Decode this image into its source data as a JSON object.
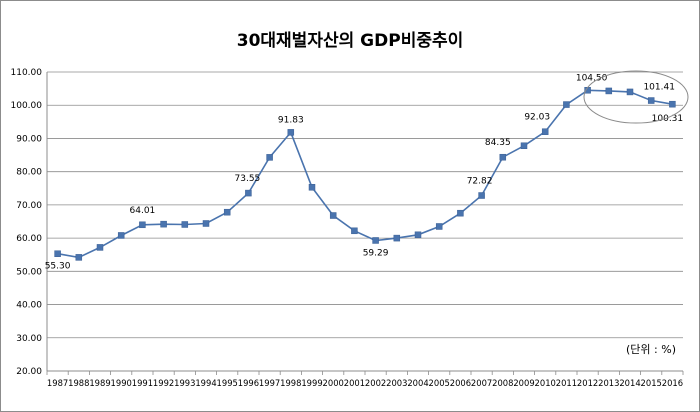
{
  "chart_data": {
    "type": "line",
    "title": "30대재벌자산의 GDP비중추이",
    "unit_note": "(단위 : %)",
    "x": [
      "1987",
      "1988",
      "1989",
      "1990",
      "1991",
      "1992",
      "1993",
      "1994",
      "1995",
      "1996",
      "1997",
      "1998",
      "1999",
      "2000",
      "2001",
      "2002",
      "2003",
      "2004",
      "2005",
      "2006",
      "2007",
      "2008",
      "2009",
      "2010",
      "2011",
      "2012",
      "2013",
      "2014",
      "2015",
      "2016"
    ],
    "series": [
      {
        "values": [
          55.3,
          54.2,
          57.2,
          60.8,
          64.01,
          64.2,
          64.1,
          64.4,
          67.8,
          73.55,
          84.3,
          91.83,
          75.3,
          66.8,
          62.2,
          59.29,
          60.0,
          61.0,
          63.5,
          67.5,
          72.82,
          84.35,
          87.8,
          92.03,
          100.2,
          104.5,
          104.3,
          104.0,
          101.41,
          100.31
        ],
        "color": "#4a74ae"
      }
    ],
    "data_labels": [
      {
        "index": 0,
        "text": "55.30"
      },
      {
        "index": 4,
        "text": "64.01"
      },
      {
        "index": 9,
        "text": "73.55"
      },
      {
        "index": 11,
        "text": "91.83"
      },
      {
        "index": 15,
        "text": "59.29"
      },
      {
        "index": 20,
        "text": "72.82"
      },
      {
        "index": 21,
        "text": "84.35"
      },
      {
        "index": 23,
        "text": "92.03"
      },
      {
        "index": 25,
        "text": "104.50"
      },
      {
        "index": 28,
        "text": "101.41"
      },
      {
        "index": 29,
        "text": "100.31"
      }
    ],
    "ylim": [
      20,
      110
    ],
    "yticks": [
      "20.00",
      "30.00",
      "40.00",
      "50.00",
      "60.00",
      "70.00",
      "80.00",
      "90.00",
      "100.00",
      "110.00"
    ],
    "grid": true,
    "legend": "none",
    "annotation": "ellipse around 2012-2016 values"
  }
}
